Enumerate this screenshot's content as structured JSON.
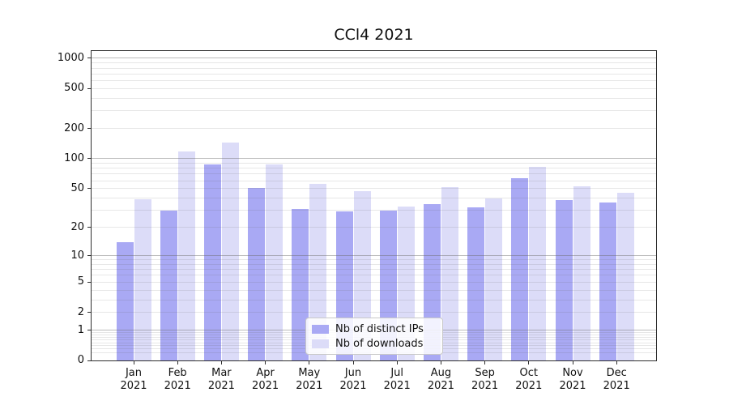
{
  "chart_data": {
    "type": "bar",
    "title": "CCl4 2021",
    "categories": [
      "Jan 2021",
      "Feb 2021",
      "Mar 2021",
      "Apr 2021",
      "May 2021",
      "Jun 2021",
      "Jul 2021",
      "Aug 2021",
      "Sep 2021",
      "Oct 2021",
      "Nov 2021",
      "Dec 2021"
    ],
    "x_axis": {
      "months": [
        "Jan",
        "Feb",
        "Mar",
        "Apr",
        "May",
        "Jun",
        "Jul",
        "Aug",
        "Sep",
        "Oct",
        "Nov",
        "Dec"
      ],
      "year": "2021"
    },
    "series": [
      {
        "name": "Nb of distinct IPs",
        "color": "#a9a9f4",
        "values": [
          14,
          30,
          87,
          51,
          31,
          29,
          30,
          35,
          32,
          63,
          38,
          36
        ]
      },
      {
        "name": "Nb of downloads",
        "color": "#dcdcf8",
        "values": [
          39,
          117,
          146,
          87,
          56,
          47,
          33,
          52,
          40,
          83,
          53,
          45
        ]
      }
    ],
    "yscale": "log1p",
    "y_ticks": [
      0,
      1,
      2,
      5,
      10,
      20,
      50,
      100,
      200,
      500,
      1000
    ],
    "ylim": [
      0,
      1180
    ],
    "grid": true,
    "legend_position": "lower-center"
  }
}
